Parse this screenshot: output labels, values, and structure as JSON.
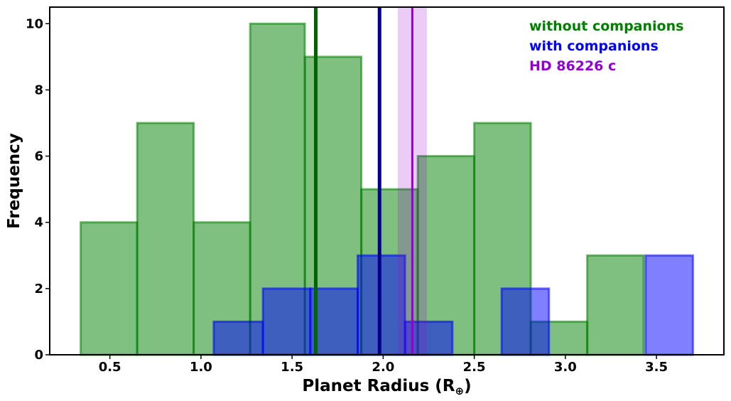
{
  "chart_data": {
    "type": "bar",
    "xlabel": "Planet Radius (R",
    "xlabel_sub": "⊕",
    "xlabel_close": ")",
    "ylabel": "Frequency",
    "xlim": [
      0.17,
      3.87
    ],
    "ylim": [
      0,
      10.5
    ],
    "xticks": [
      0.5,
      1.0,
      1.5,
      2.0,
      2.5,
      3.0,
      3.5
    ],
    "xtick_labels": [
      "0.5",
      "1.0",
      "1.5",
      "2.0",
      "2.5",
      "3.0",
      "3.5"
    ],
    "yticks": [
      0,
      2,
      4,
      6,
      8,
      10
    ],
    "ytick_labels": [
      "0",
      "2",
      "4",
      "6",
      "8",
      "10"
    ],
    "series": [
      {
        "name": "without companions",
        "color": "#008000",
        "bins": [
          {
            "x0": 0.34,
            "x1": 0.65,
            "count": 4
          },
          {
            "x0": 0.65,
            "x1": 0.96,
            "count": 7
          },
          {
            "x0": 0.96,
            "x1": 1.27,
            "count": 4
          },
          {
            "x0": 1.27,
            "x1": 1.57,
            "count": 10
          },
          {
            "x0": 1.57,
            "x1": 1.88,
            "count": 9
          },
          {
            "x0": 1.88,
            "x1": 2.19,
            "count": 5
          },
          {
            "x0": 2.19,
            "x1": 2.5,
            "count": 6
          },
          {
            "x0": 2.5,
            "x1": 2.81,
            "count": 7
          },
          {
            "x0": 2.81,
            "x1": 3.12,
            "count": 1
          },
          {
            "x0": 3.12,
            "x1": 3.43,
            "count": 3
          }
        ],
        "mean_line": 1.63
      },
      {
        "name": "with companions",
        "color": "#0000ff",
        "bins": [
          {
            "x0": 1.07,
            "x1": 1.34,
            "count": 1
          },
          {
            "x0": 1.34,
            "x1": 1.6,
            "count": 2
          },
          {
            "x0": 1.6,
            "x1": 1.86,
            "count": 2
          },
          {
            "x0": 1.86,
            "x1": 2.12,
            "count": 3
          },
          {
            "x0": 2.12,
            "x1": 2.38,
            "count": 1
          },
          {
            "x0": 2.65,
            "x1": 2.91,
            "count": 2
          },
          {
            "x0": 3.44,
            "x1": 3.7,
            "count": 3
          }
        ],
        "mean_line": 1.98
      },
      {
        "name": "HD 86226 c",
        "color": "#9400d3",
        "value": 2.16,
        "band": [
          2.08,
          2.24
        ]
      }
    ],
    "legend_position": "top-right",
    "grid": false
  }
}
